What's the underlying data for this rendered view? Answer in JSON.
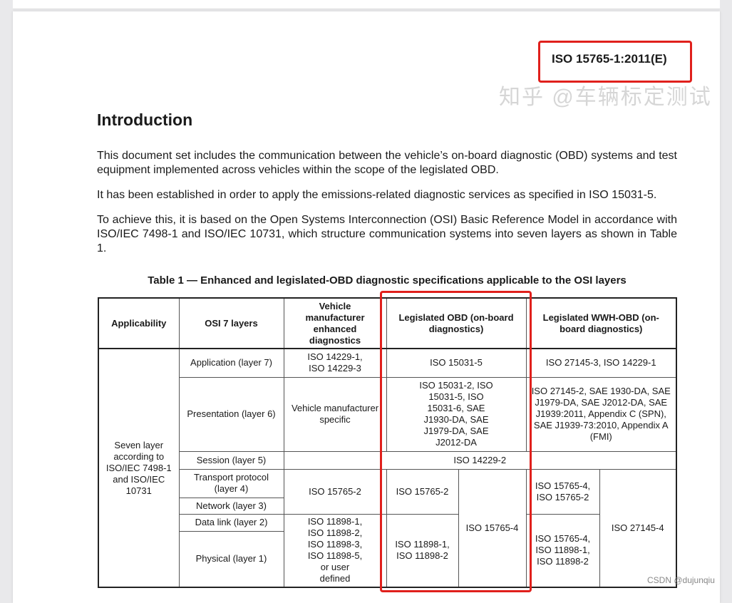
{
  "doc_ref": "ISO 15765-1:2011(E)",
  "heading": "Introduction",
  "paragraphs": [
    "This document set includes the communication between the vehicle’s on-board diagnostic (OBD) systems and test equipment implemented across vehicles within the scope of the legislated OBD.",
    "It has been established in order to apply the emissions-related diagnostic services as specified in ISO 15031-5.",
    "To achieve this, it is based on the Open Systems Interconnection (OSI) Basic Reference Model in accordance with ISO/IEC 7498-1 and ISO/IEC 10731, which structure communication systems into seven layers as shown in Table 1."
  ],
  "table": {
    "caption": "Table 1 — Enhanced and legislated-OBD diagnostic specifications applicable to the OSI layers",
    "headers": [
      "Applicability",
      "OSI 7 layers",
      "Vehicle manufacturer enhanced diagnostics",
      "Legislated OBD (on-board diagnostics)",
      "Legislated WWH-OBD (on-board diagnostics)"
    ],
    "applicability": "Seven layer according to ISO/IEC 7498-1 and ISO/IEC 10731",
    "layers": [
      "Application (layer 7)",
      "Presentation (layer 6)",
      "Session (layer 5)",
      "Transport protocol (layer 4)",
      "Network (layer 3)",
      "Data link (layer 2)",
      "Physical (layer 1)"
    ],
    "app_vm": "ISO 14229-1, ISO 14229-3",
    "app_obd": "ISO 15031-5",
    "app_wwh": "ISO 27145-3, ISO 14229-1",
    "pres_vm": "Vehicle manufacturer specific",
    "pres_obd": "ISO 15031-2, ISO 15031-5, ISO 15031-6, SAE J1930-DA, SAE J1979-DA, SAE J2012-DA",
    "pres_wwh": "ISO 27145-2, SAE 1930-DA, SAE J1979-DA, SAE J2012-DA, SAE J1939:2011, Appendix C (SPN), SAE J1939-73:2010, Appendix A (FMI)",
    "session": "ISO 14229-2",
    "tn_vm": "ISO 15765-2",
    "tn_obd": "ISO 15765-2",
    "obd_can": "ISO 15765-4",
    "tn_wwh": "ISO 15765-4, ISO 15765-2",
    "wwh_can": "ISO 27145-4",
    "dp_vm": "ISO 11898-1, ISO 11898-2, ISO 11898-3, ISO 11898-5, or user defined",
    "dp_obd": "ISO 11898-1, ISO 11898-2",
    "dp_wwh": "ISO 15765-4, ISO 11898-1, ISO 11898-2"
  },
  "watermark": "知乎 @车辆标定测试",
  "csdn": "CSDN @dujunqiu",
  "highlight_color": "#e0201c"
}
